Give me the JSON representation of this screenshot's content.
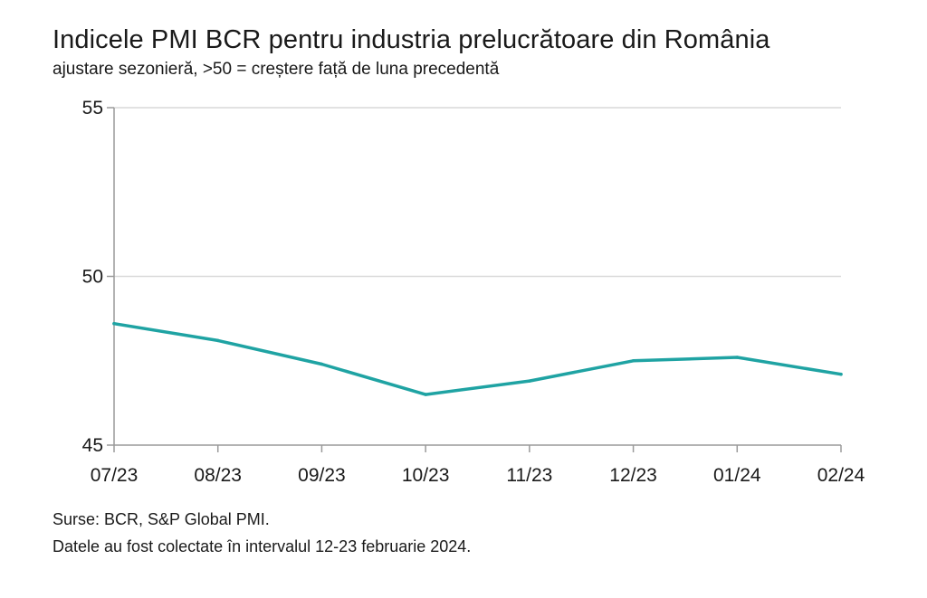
{
  "chart_data": {
    "type": "line",
    "title": "Indicele PMI BCR pentru industria prelucrătoare din România",
    "subtitle": "ajustare sezonieră, >50 = creștere față de luna precedentă",
    "categories": [
      "07/23",
      "08/23",
      "09/23",
      "10/23",
      "11/23",
      "12/23",
      "01/24",
      "02/24"
    ],
    "series": [
      {
        "values": [
          48.6,
          48.1,
          47.4,
          46.5,
          46.9,
          47.5,
          47.6,
          47.1
        ],
        "color": "#1fa3a3"
      }
    ],
    "ylim": [
      45,
      55
    ],
    "yticks": [
      45,
      50,
      55
    ],
    "grid": true,
    "legend": "none"
  },
  "footer": {
    "source": "Surse: BCR, S&P Global PMI.",
    "note": "Datele au fost colectate în intervalul 12-23 februarie 2024."
  },
  "colors": {
    "gridline": "#d9d9d9",
    "axis": "#9a9a9a",
    "line": "#1fa3a3"
  }
}
